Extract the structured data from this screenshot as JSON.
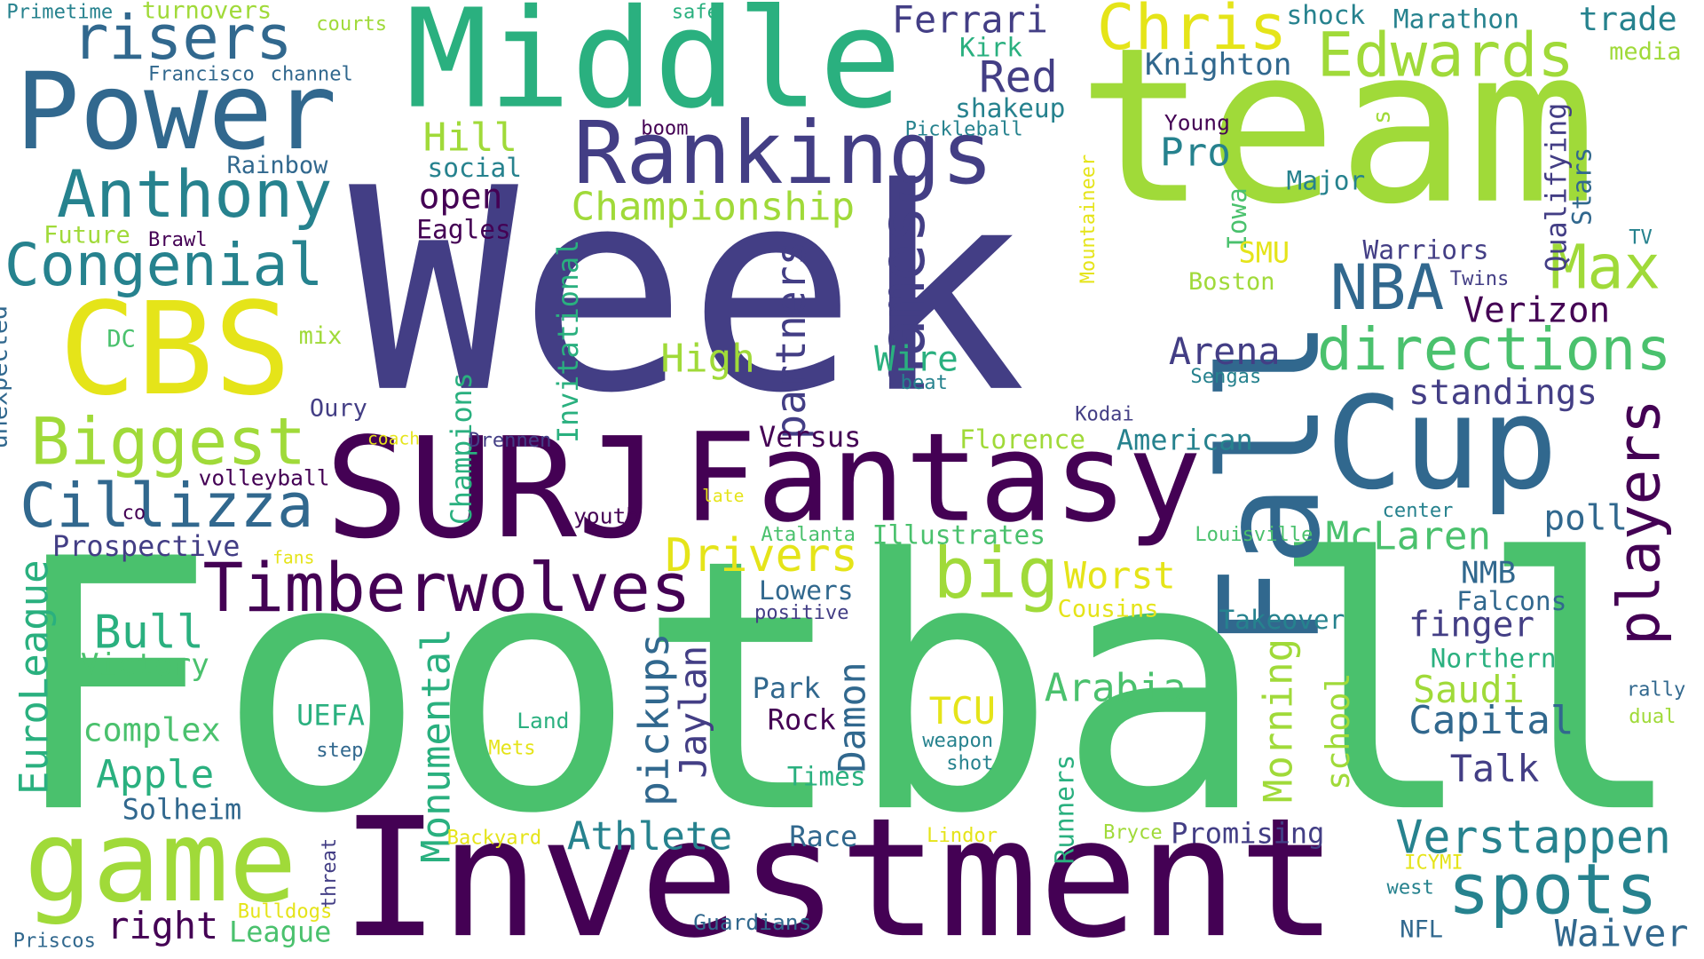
{
  "palette": {
    "dark_purple": "#440154",
    "indigo": "#433e85",
    "slate_blue": "#31688e",
    "teal": "#26828e",
    "green": "#2ab07f",
    "mid_green": "#4ac16d",
    "lime": "#a0da39",
    "yellow": "#e5e419"
  },
  "words": [
    {
      "text": "Week",
      "color": "#433e85",
      "rot": 0
    },
    {
      "text": "Football",
      "color": "#4ac16d",
      "rot": 0
    },
    {
      "text": "team",
      "color": "#a0da39",
      "rot": 0
    },
    {
      "text": "Investment",
      "color": "#440154",
      "rot": 0
    },
    {
      "text": "Middle",
      "color": "#2ab07f",
      "rot": 0
    },
    {
      "text": "SURJ",
      "color": "#440154",
      "rot": 0
    },
    {
      "text": "Fantasy",
      "color": "#440154",
      "rot": 0
    },
    {
      "text": "Fall",
      "color": "#31688e",
      "rot": -90
    },
    {
      "text": "Power",
      "color": "#31688e",
      "rot": 0
    },
    {
      "text": "Cup",
      "color": "#31688e",
      "rot": 0
    },
    {
      "text": "CBS",
      "color": "#e5e419",
      "rot": 0
    },
    {
      "text": "Rankings",
      "color": "#433e85",
      "rot": 0
    },
    {
      "text": "game",
      "color": "#a0da39",
      "rot": 0
    },
    {
      "text": "Timberwolves",
      "color": "#440154",
      "rot": 0
    },
    {
      "text": "Anthony",
      "color": "#26828e",
      "rot": 0
    },
    {
      "text": "Edwards",
      "color": "#a0da39",
      "rot": 0
    },
    {
      "text": "Chris",
      "color": "#e5e419",
      "rot": 0
    },
    {
      "text": "names",
      "color": "#433e85",
      "rot": -90
    },
    {
      "text": "players",
      "color": "#440154",
      "rot": -90
    },
    {
      "text": "directions",
      "color": "#4ac16d",
      "rot": 0
    },
    {
      "text": "Congenial",
      "color": "#26828e",
      "rot": 0
    },
    {
      "text": "Biggest",
      "color": "#a0da39",
      "rot": 0
    },
    {
      "text": "Cillizza",
      "color": "#31688e",
      "rot": 0
    },
    {
      "text": "spots",
      "color": "#26828e",
      "rot": 0
    },
    {
      "text": "big",
      "color": "#a0da39",
      "rot": 0
    },
    {
      "text": "NBA",
      "color": "#31688e",
      "rot": 0
    },
    {
      "text": "Max",
      "color": "#a0da39",
      "rot": 0
    },
    {
      "text": "risers",
      "color": "#31688e",
      "rot": 0
    },
    {
      "text": "Verstappen",
      "color": "#26828e",
      "rot": 0
    },
    {
      "text": "EuroLeague",
      "color": "#2ab07f",
      "rot": -90
    },
    {
      "text": "Championship",
      "color": "#a0da39",
      "rot": 0
    },
    {
      "text": "Drivers",
      "color": "#e5e419",
      "rot": 0
    },
    {
      "text": "McLaren",
      "color": "#4ac16d",
      "rot": 0
    },
    {
      "text": "Bull",
      "color": "#2ab07f",
      "rot": 0
    },
    {
      "text": "Athlete",
      "color": "#26828e",
      "rot": 0
    },
    {
      "text": "Monumental",
      "color": "#2ab07f",
      "rot": -90
    },
    {
      "text": "pickups",
      "color": "#31688e",
      "rot": -90
    },
    {
      "text": "partners",
      "color": "#433e85",
      "rot": -90
    },
    {
      "text": "Arabia",
      "color": "#4ac16d",
      "rot": 0
    },
    {
      "text": "Capital",
      "color": "#31688e",
      "rot": 0
    },
    {
      "text": "Morning",
      "color": "#a0da39",
      "rot": -90
    },
    {
      "text": "Ferrari",
      "color": "#433e85",
      "rot": 0
    },
    {
      "text": "Red",
      "color": "#433e85",
      "rot": 0
    },
    {
      "text": "Apple",
      "color": "#2ab07f",
      "rot": 0
    },
    {
      "text": "Jaylan",
      "color": "#433e85",
      "rot": -90
    },
    {
      "text": "Damon",
      "color": "#31688e",
      "rot": -90
    },
    {
      "text": "Verizon",
      "color": "#440154",
      "rot": 0
    },
    {
      "text": "standings",
      "color": "#433e85",
      "rot": 0
    },
    {
      "text": "Arena",
      "color": "#433e85",
      "rot": 0
    },
    {
      "text": "High",
      "color": "#a0da39",
      "rot": 0
    },
    {
      "text": "Worst",
      "color": "#e5e419",
      "rot": 0
    },
    {
      "text": "Saudi",
      "color": "#a0da39",
      "rot": 0
    },
    {
      "text": "Hill",
      "color": "#a0da39",
      "rot": 0
    },
    {
      "text": "open",
      "color": "#440154",
      "rot": 0
    },
    {
      "text": "Pro",
      "color": "#26828e",
      "rot": 0
    },
    {
      "text": "Wire",
      "color": "#2ab07f",
      "rot": 0
    },
    {
      "text": "school",
      "color": "#a0da39",
      "rot": -90
    },
    {
      "text": "finger",
      "color": "#433e85",
      "rot": 0
    },
    {
      "text": "poll",
      "color": "#31688e",
      "rot": 0
    },
    {
      "text": "Talk",
      "color": "#433e85",
      "rot": 0
    },
    {
      "text": "TCU",
      "color": "#e5e419",
      "rot": 0
    },
    {
      "text": "Waiver",
      "color": "#31688e",
      "rot": 0
    },
    {
      "text": "right",
      "color": "#440154",
      "rot": 0
    },
    {
      "text": "complex",
      "color": "#4ac16d",
      "rot": 0
    },
    {
      "text": "Invitational",
      "color": "#2ab07f",
      "rot": -90
    },
    {
      "text": "Qualifying",
      "color": "#433e85",
      "rot": -90
    },
    {
      "text": "Illustrates",
      "color": "#4ac16d",
      "rot": 0
    },
    {
      "text": "Knighton",
      "color": "#31688e",
      "rot": 0
    },
    {
      "text": "Champions",
      "color": "#2ab07f",
      "rot": -90
    },
    {
      "text": "Promising",
      "color": "#433e85",
      "rot": 0
    },
    {
      "text": "Warriors",
      "color": "#433e85",
      "rot": 0
    },
    {
      "text": "Victory",
      "color": "#4ac16d",
      "rot": 0
    },
    {
      "text": "Stars",
      "color": "#31688e",
      "rot": -90
    },
    {
      "text": "Versus",
      "color": "#440154",
      "rot": 0
    },
    {
      "text": "UEFA",
      "color": "#2ab07f",
      "rot": 0
    },
    {
      "text": "Prospective",
      "color": "#433e85",
      "rot": 0
    },
    {
      "text": "Solheim",
      "color": "#31688e",
      "rot": 0
    },
    {
      "text": "Takeover",
      "color": "#26828e",
      "rot": 0
    },
    {
      "text": "NMB",
      "color": "#31688e",
      "rot": 0
    },
    {
      "text": "Race",
      "color": "#31688e",
      "rot": 0
    },
    {
      "text": "Iowa",
      "color": "#4ac16d",
      "rot": -90
    },
    {
      "text": "Northern",
      "color": "#2ab07f",
      "rot": 0
    },
    {
      "text": "League",
      "color": "#4ac16d",
      "rot": 0
    },
    {
      "text": "Park",
      "color": "#31688e",
      "rot": 0
    },
    {
      "text": "Falcons",
      "color": "#31688e",
      "rot": 0
    },
    {
      "text": "Times",
      "color": "#2ab07f",
      "rot": 0
    },
    {
      "text": "Rock",
      "color": "#440154",
      "rot": 0
    },
    {
      "text": "American",
      "color": "#26828e",
      "rot": 0
    },
    {
      "text": "Runners",
      "color": "#2ab07f",
      "rot": -90
    },
    {
      "text": "Florence",
      "color": "#a0da39",
      "rot": 0
    },
    {
      "text": "Lowers",
      "color": "#31688e",
      "rot": 0
    },
    {
      "text": "trade",
      "color": "#26828e",
      "rot": 0
    },
    {
      "text": "Marathon",
      "color": "#26828e",
      "rot": 0
    },
    {
      "text": "shock",
      "color": "#26828e",
      "rot": 0
    },
    {
      "text": "Major",
      "color": "#26828e",
      "rot": 0
    },
    {
      "text": "Eagles",
      "color": "#440154",
      "rot": 0
    },
    {
      "text": "social",
      "color": "#26828e",
      "rot": 0
    },
    {
      "text": "shakeup",
      "color": "#26828e",
      "rot": 0
    },
    {
      "text": "Kirk",
      "color": "#2ab07f",
      "rot": 0
    },
    {
      "text": "Rainbow",
      "color": "#31688e",
      "rot": 0
    },
    {
      "text": "Oury",
      "color": "#433e85",
      "rot": 0
    },
    {
      "text": "unexpected",
      "color": "#31688e",
      "rot": -90
    },
    {
      "text": "SMU",
      "color": "#e5e419",
      "rot": 0
    },
    {
      "text": "Boston",
      "color": "#a0da39",
      "rot": 0
    },
    {
      "text": "Cousins",
      "color": "#e5e419",
      "rot": 0
    },
    {
      "text": "turnovers",
      "color": "#a0da39",
      "rot": 0
    },
    {
      "text": "media",
      "color": "#a0da39",
      "rot": 0
    },
    {
      "text": "Future",
      "color": "#a0da39",
      "rot": 0
    },
    {
      "text": "Mountaineer",
      "color": "#e5e419",
      "rot": -90
    },
    {
      "text": "threat",
      "color": "#433e85",
      "rot": -90
    },
    {
      "text": "Guardians",
      "color": "#31688e",
      "rot": 0
    },
    {
      "text": "volleyball",
      "color": "#440154",
      "rot": 0
    },
    {
      "text": "Primetime",
      "color": "#26828e",
      "rot": 0
    },
    {
      "text": "Francisco",
      "color": "#31688e",
      "rot": 0
    },
    {
      "text": "channel",
      "color": "#31688e",
      "rot": 0
    },
    {
      "text": "Young",
      "color": "#440154",
      "rot": 0
    },
    {
      "text": "Pickleball",
      "color": "#26828e",
      "rot": 0
    },
    {
      "text": "Louisville",
      "color": "#4ac16d",
      "rot": 0
    },
    {
      "text": "youth",
      "color": "#440154",
      "rot": 0
    },
    {
      "text": "Sengas",
      "color": "#26828e",
      "rot": 0
    },
    {
      "text": "Kodai",
      "color": "#433e85",
      "rot": 0
    },
    {
      "text": "Drennen",
      "color": "#433e85",
      "rot": 0
    },
    {
      "text": "mix",
      "color": "#a0da39",
      "rot": 0
    },
    {
      "text": "DC",
      "color": "#4ac16d",
      "rot": 0
    },
    {
      "text": "Atalanta",
      "color": "#4ac16d",
      "rot": 0
    },
    {
      "text": "positive",
      "color": "#433e85",
      "rot": 0
    },
    {
      "text": "Brawl",
      "color": "#440154",
      "rot": 0
    },
    {
      "text": "Twins",
      "color": "#433e85",
      "rot": 0
    },
    {
      "text": "center",
      "color": "#26828e",
      "rot": 0
    },
    {
      "text": "rally",
      "color": "#31688e",
      "rot": 0
    },
    {
      "text": "dual",
      "color": "#a0da39",
      "rot": 0
    },
    {
      "text": "west",
      "color": "#26828e",
      "rot": 0
    },
    {
      "text": "NFL",
      "color": "#31688e",
      "rot": 0
    },
    {
      "text": "ICYMI",
      "color": "#e5e419",
      "rot": 0
    },
    {
      "text": "Bryce",
      "color": "#a0da39",
      "rot": 0
    },
    {
      "text": "Lindor",
      "color": "#e5e419",
      "rot": 0
    },
    {
      "text": "Backyard",
      "color": "#e5e419",
      "rot": 0
    },
    {
      "text": "Mets",
      "color": "#e5e419",
      "rot": 0
    },
    {
      "text": "Land",
      "color": "#2ab07f",
      "rot": 0
    },
    {
      "text": "step",
      "color": "#31688e",
      "rot": 0
    },
    {
      "text": "weapon",
      "color": "#26828e",
      "rot": 0
    },
    {
      "text": "shot",
      "color": "#26828e",
      "rot": 0
    },
    {
      "text": "Bulldogs",
      "color": "#e5e419",
      "rot": 0
    },
    {
      "text": "Priscos",
      "color": "#31688e",
      "rot": 0
    },
    {
      "text": "fans",
      "color": "#e5e419",
      "rot": 0
    },
    {
      "text": "co",
      "color": "#440154",
      "rot": 0
    },
    {
      "text": "coach",
      "color": "#e5e419",
      "rot": 0
    },
    {
      "text": "late",
      "color": "#e5e419",
      "rot": 0
    },
    {
      "text": "beat",
      "color": "#26828e",
      "rot": 0
    },
    {
      "text": "boom",
      "color": "#440154",
      "rot": 0
    },
    {
      "text": "safe",
      "color": "#2ab07f",
      "rot": 0
    },
    {
      "text": "courts",
      "color": "#a0da39",
      "rot": 0
    },
    {
      "text": "TV",
      "color": "#26828e",
      "rot": 0
    },
    {
      "text": "s",
      "color": "#a0da39",
      "rot": -90
    }
  ]
}
